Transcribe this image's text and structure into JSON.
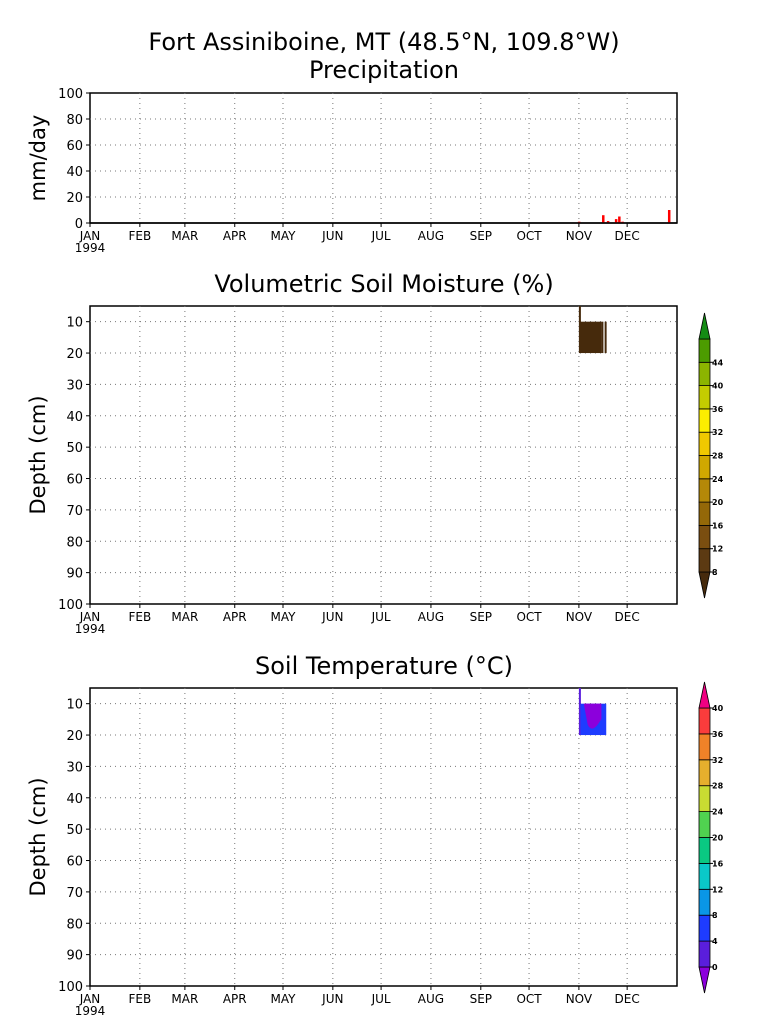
{
  "figure": {
    "title": "Fort Assiniboine, MT (48.5°N, 109.8°W)"
  },
  "chart_data": [
    {
      "type": "bar",
      "title": "Precipitation",
      "ylabel": "mm/day",
      "xlabel": "",
      "ylim": [
        0,
        100
      ],
      "yticks": [
        "0",
        "20",
        "40",
        "60",
        "80",
        "100"
      ],
      "xticks": [
        "JAN",
        "FEB",
        "MAR",
        "APR",
        "MAY",
        "JUN",
        "JUL",
        "AUG",
        "SEP",
        "OCT",
        "NOV",
        "DEC"
      ],
      "xtick_year": "1994",
      "grid": true,
      "bar_color": "#ff0000",
      "series": [
        {
          "values": [
            {
              "date": "1994-11-01",
              "value": 1
            },
            {
              "date": "1994-11-16",
              "value": 6
            },
            {
              "date": "1994-11-19",
              "value": 1.5
            },
            {
              "date": "1994-11-24",
              "value": 3
            },
            {
              "date": "1994-11-26",
              "value": 5
            },
            {
              "date": "1994-11-28",
              "value": 1
            },
            {
              "date": "1994-12-27",
              "value": 10
            }
          ]
        }
      ]
    },
    {
      "type": "heatmap",
      "title": "Volumetric Soil Moisture (%)",
      "ylabel": "Depth (cm)",
      "xlabel": "",
      "ylim": [
        100,
        5
      ],
      "yticks": [
        "10",
        "20",
        "30",
        "40",
        "50",
        "60",
        "70",
        "80",
        "90",
        "100"
      ],
      "xticks": [
        "JAN",
        "FEB",
        "MAR",
        "APR",
        "MAY",
        "JUN",
        "JUL",
        "AUG",
        "SEP",
        "OCT",
        "NOV",
        "DEC"
      ],
      "xtick_year": "1994",
      "grid": true,
      "colorbar": {
        "labels": [
          "8",
          "12",
          "16",
          "20",
          "24",
          "28",
          "32",
          "36",
          "40",
          "44"
        ],
        "colors": [
          "#462a0c",
          "#5c3a12",
          "#7a4e10",
          "#946808",
          "#b48808",
          "#d0a800",
          "#f0c800",
          "#fcee00",
          "#c4cc00",
          "#8cb400",
          "#4c9c00",
          "#148c14"
        ]
      },
      "cells": [
        {
          "start": "1994-11-01",
          "end": "1994-11-02",
          "depth_top": 5,
          "depth_bottom": 20,
          "color": "#462a0c"
        },
        {
          "start": "1994-11-02",
          "end": "1994-11-15",
          "depth_top": 10,
          "depth_bottom": 20,
          "color": "#462a0c"
        },
        {
          "start": "1994-11-15",
          "end": "1994-11-16",
          "depth_top": 10,
          "depth_bottom": 20,
          "color": "#462a0c"
        },
        {
          "start": "1994-11-17",
          "end": "1994-11-18",
          "depth_top": 10,
          "depth_bottom": 20,
          "color": "#462a0c"
        }
      ]
    },
    {
      "type": "heatmap",
      "title": "Soil Temperature (°C)",
      "ylabel": "Depth (cm)",
      "xlabel": "",
      "ylim": [
        100,
        5
      ],
      "yticks": [
        "10",
        "20",
        "30",
        "40",
        "50",
        "60",
        "70",
        "80",
        "90",
        "100"
      ],
      "xticks": [
        "JAN",
        "FEB",
        "MAR",
        "APR",
        "MAY",
        "JUN",
        "JUL",
        "AUG",
        "SEP",
        "OCT",
        "NOV",
        "DEC"
      ],
      "xtick_year": "1994",
      "grid": true,
      "colorbar": {
        "labels": [
          "0",
          "4",
          "8",
          "12",
          "16",
          "20",
          "24",
          "28",
          "32",
          "36",
          "40"
        ],
        "colors": [
          "#8c00dc",
          "#5a1edc",
          "#1e3cff",
          "#0a96e6",
          "#0ac8c8",
          "#0ac882",
          "#50d250",
          "#c8dc32",
          "#e6af2d",
          "#f08228",
          "#fa3c3c",
          "#f00082"
        ]
      },
      "cells": [
        {
          "start": "1994-11-01",
          "end": "1994-11-02",
          "depth_top": 5,
          "depth_bottom": 20,
          "color": "#5a1edc"
        },
        {
          "start": "1994-11-02",
          "end": "1994-11-18",
          "depth_top": 10,
          "depth_bottom": 20,
          "color": "#1e3cff"
        }
      ],
      "blobs": [
        {
          "start": "1994-11-04",
          "end": "1994-11-15",
          "depth_top": 10,
          "depth_bottom": 18,
          "color": "#8c00dc"
        }
      ]
    }
  ]
}
